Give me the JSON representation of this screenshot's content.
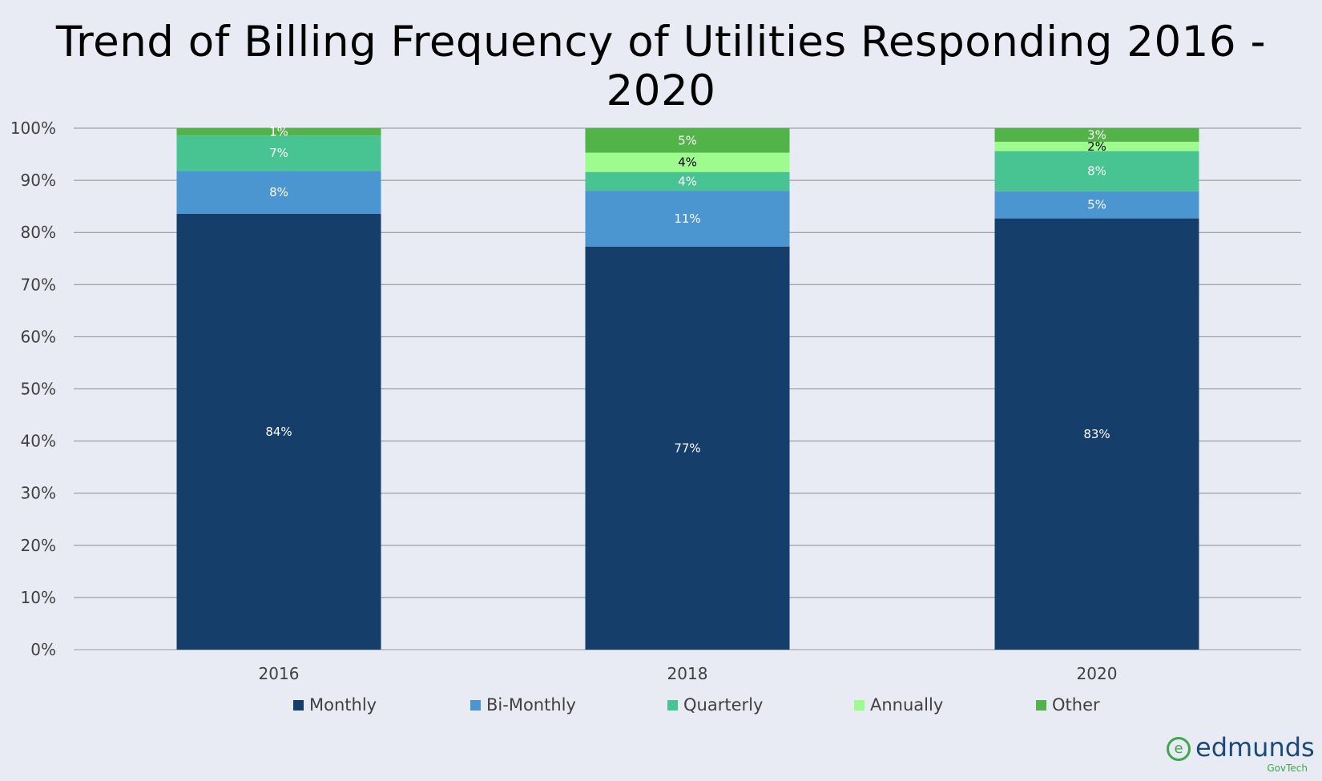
{
  "chart_data": {
    "type": "bar",
    "stacked": true,
    "title": "Trend of Billing Frequency of Utilities Responding 2016 - 2020",
    "categories": [
      "2016",
      "2018",
      "2020"
    ],
    "ylim": [
      0,
      100
    ],
    "yticks": [
      "0%",
      "10%",
      "20%",
      "30%",
      "40%",
      "50%",
      "60%",
      "70%",
      "80%",
      "90%",
      "100%"
    ],
    "grid": true,
    "legend_position": "bottom",
    "series": [
      {
        "name": "Monthly",
        "color": "#163e6b",
        "label_color": "#ffffff",
        "values": [
          83.6,
          77.3,
          82.7
        ],
        "labels": [
          "84%",
          "77%",
          "83%"
        ]
      },
      {
        "name": "Bi-Monthly",
        "color": "#4b95d1",
        "label_color": "#ffffff",
        "values": [
          8.2,
          10.7,
          5.2
        ],
        "labels": [
          "8%",
          "11%",
          "5%"
        ]
      },
      {
        "name": "Quarterly",
        "color": "#48c493",
        "label_color": "#ffffff",
        "values": [
          6.8,
          3.6,
          7.7
        ],
        "labels": [
          "7%",
          "4%",
          "8%"
        ]
      },
      {
        "name": "Annually",
        "color": "#9dfc8d",
        "label_color": "#000000",
        "values": [
          0,
          3.7,
          1.8
        ],
        "labels": [
          "",
          "4%",
          "2%"
        ]
      },
      {
        "name": "Other",
        "color": "#51b348",
        "label_color": "#ffffff",
        "values": [
          1.4,
          4.7,
          2.6
        ],
        "labels": [
          "1%",
          "5%",
          "3%"
        ]
      }
    ]
  },
  "logo": {
    "name": "edmunds",
    "sub": "GovTech",
    "mark": "e"
  }
}
